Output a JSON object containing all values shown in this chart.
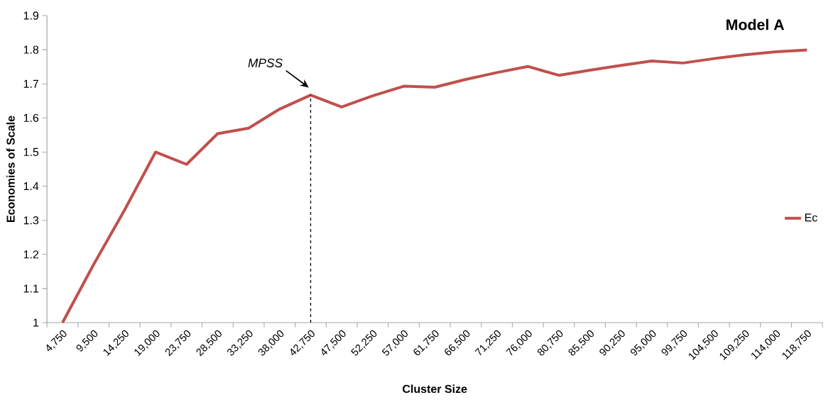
{
  "chart_data": {
    "type": "line",
    "title": "Model A",
    "xlabel": "Cluster Size",
    "ylabel": "Economies of Scale",
    "categories": [
      "4,750",
      "9,500",
      "14,250",
      "19,000",
      "23,750",
      "28,500",
      "33,250",
      "38,000",
      "42,750",
      "47,500",
      "52,250",
      "57,000",
      "61,750",
      "66,500",
      "71,250",
      "76,000",
      "80,750",
      "85,500",
      "90,250",
      "95,000",
      "99,750",
      "104,500",
      "109,250",
      "114,000",
      "118,750"
    ],
    "series": [
      {
        "name": "Ec",
        "color": "#c0504d",
        "values": [
          1.0,
          1.17,
          1.33,
          1.5,
          1.464,
          1.554,
          1.57,
          1.626,
          1.667,
          1.632,
          1.665,
          1.693,
          1.69,
          1.713,
          1.733,
          1.751,
          1.725,
          1.74,
          1.754,
          1.767,
          1.761,
          1.774,
          1.785,
          1.794,
          1.799
        ]
      }
    ],
    "ylim": [
      1,
      1.9
    ],
    "yticks": [
      1,
      1.1,
      1.2,
      1.3,
      1.4,
      1.5,
      1.6,
      1.7,
      1.8,
      1.9
    ],
    "grid": false,
    "legend": "right",
    "marker": "none",
    "line_style": "solid",
    "annotations": [
      "MPSS"
    ],
    "ref_lines": [
      {
        "axis": "x",
        "value": "42,750",
        "line_style": "dashed",
        "color": "#000000"
      }
    ]
  }
}
